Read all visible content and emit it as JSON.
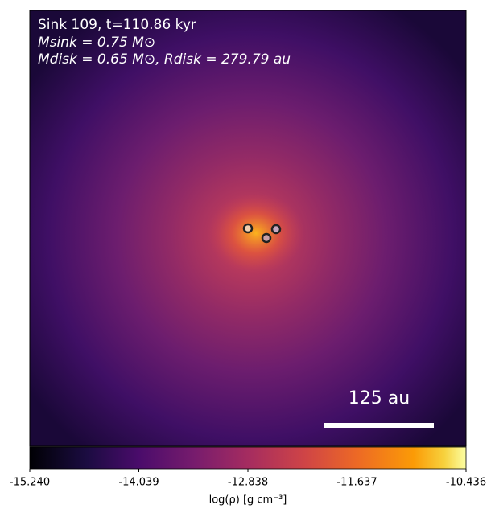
{
  "chart_data": {
    "type": "image",
    "annotations": [
      "Sink 109, t=110.86 kyr",
      "Msink = 0.75 M⊙",
      "Mdisk = 0.65 M⊙, Rdisk = 279.79 au"
    ],
    "scale_bar_label": "125 au",
    "colorbar_label": "log(ρ) [g cm⁻³]",
    "colormap": "inferno",
    "clim": [
      -15.24,
      -10.436
    ],
    "cticks": [
      {
        "value": -15.24,
        "label": "-15.240"
      },
      {
        "value": -14.039,
        "label": "-14.039"
      },
      {
        "value": -12.838,
        "label": "-12.838"
      },
      {
        "value": -11.637,
        "label": "-11.637"
      },
      {
        "value": -10.436,
        "label": "-10.436"
      }
    ]
  }
}
